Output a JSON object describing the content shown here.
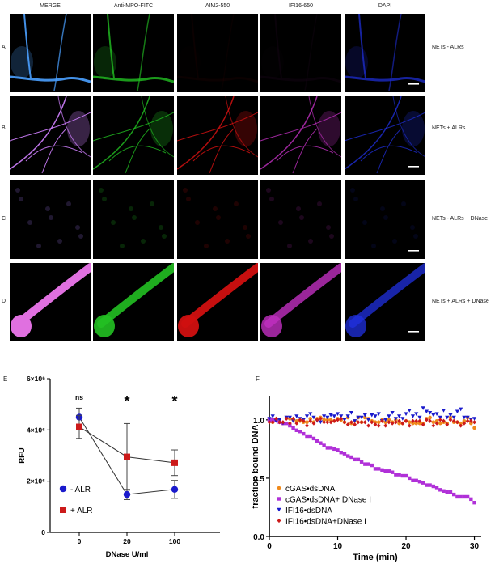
{
  "figure": {
    "columns": [
      "MERGE",
      "Anti-MPO-FITC",
      "AIM2-550",
      "IFI16-650",
      "DAPI"
    ],
    "rows": [
      {
        "letter": "A",
        "condition": "NETs - ALRs"
      },
      {
        "letter": "B",
        "condition": "NETs + ALRs"
      },
      {
        "letter": "C",
        "condition": "NETs - ALRs + DNase"
      },
      {
        "letter": "D",
        "condition": "NETs + ALRs + DNase"
      }
    ],
    "channel_colors": {
      "merge": "#3a7bd5",
      "mpo": "#22c022",
      "aim2": "#d01010",
      "ifi16": "#c030c0",
      "dapi": "#2030e0"
    }
  },
  "panelE": {
    "letter": "E",
    "chart_data": {
      "type": "line",
      "xlabel": "DNase U/ml",
      "ylabel": "RFU",
      "x_ticks": [
        "0",
        "20",
        "100"
      ],
      "y_ticks": [
        "0",
        "2×10⁶",
        "4×10⁶",
        "6×10⁶"
      ],
      "ylim": [
        0,
        6000000
      ],
      "significance": [
        "ns",
        "*",
        "*"
      ],
      "series": [
        {
          "name": "- ALR",
          "color": "#1a1acc",
          "marker": "circle",
          "values": [
            4500000,
            1480000,
            1680000
          ],
          "err": [
            350000,
            200000,
            350000
          ]
        },
        {
          "name": "+ ALR",
          "color": "#cc1a1a",
          "marker": "square",
          "values": [
            4120000,
            2950000,
            2720000
          ],
          "err": [
            450000,
            1300000,
            500000
          ]
        }
      ],
      "legend_position": "bottom-left"
    }
  },
  "panelF": {
    "letter": "F",
    "chart_data": {
      "type": "scatter",
      "xlabel": "Time (min)",
      "ylabel": "fraction bound  DNA",
      "x_ticks": [
        "0",
        "10",
        "20",
        "30"
      ],
      "y_ticks": [
        "0.0",
        "0.5",
        "1.0"
      ],
      "xlim": [
        0,
        31
      ],
      "ylim": [
        0,
        1.2
      ],
      "legend_position": "bottom-left",
      "series": [
        {
          "name": "cGAS•dsDNA",
          "color": "#f08a1c",
          "marker": "circle",
          "x": [
            0.0,
            0.5,
            1.0,
            1.5,
            2.0,
            2.5,
            3.0,
            3.5,
            4.0,
            4.5,
            5.0,
            5.5,
            6.0,
            6.5,
            7.0,
            7.5,
            8.0,
            8.5,
            9.0,
            9.5,
            10.0,
            10.5,
            11.0,
            11.5,
            12.0,
            12.5,
            13.0,
            13.5,
            14.0,
            14.5,
            15.0,
            15.5,
            16.0,
            16.5,
            17.0,
            17.5,
            18.0,
            18.5,
            19.0,
            19.5,
            20.0,
            20.5,
            21.0,
            21.5,
            22.0,
            22.5,
            23.0,
            23.5,
            24.0,
            24.5,
            25.0,
            25.5,
            26.0,
            26.5,
            27.0,
            27.5,
            28.0,
            28.5,
            29.0,
            29.5,
            30.0
          ],
          "y": [
            1.01,
            0.98,
            1.0,
            0.99,
            0.97,
            1.02,
            1.01,
            1.0,
            0.99,
            0.99,
            0.98,
            0.98,
            1.01,
            0.98,
            1.01,
            1.02,
            1.0,
            1.0,
            1.0,
            0.99,
            1.01,
            1.0,
            0.98,
            1.02,
            0.97,
            0.99,
            1.02,
            0.98,
            1.02,
            1.01,
            0.99,
            0.98,
            0.98,
            1.0,
            0.98,
            1.0,
            0.98,
            1.0,
            0.97,
            0.97,
            0.99,
            0.98,
            0.97,
            0.97,
            0.97,
            0.97,
            1.01,
            1.02,
            0.98,
            0.99,
            0.97,
            0.98,
            0.97,
            1.02,
            0.98,
            0.98,
            0.97,
            0.99,
            1.02,
            0.97,
            0.93
          ]
        },
        {
          "name": "cGAS•dsDNA+ DNase I",
          "color": "#b030d8",
          "marker": "square",
          "x": [
            0.0,
            0.5,
            1.0,
            1.5,
            2.0,
            2.5,
            3.0,
            3.5,
            4.0,
            4.5,
            5.0,
            5.5,
            6.0,
            6.5,
            7.0,
            7.5,
            8.0,
            8.5,
            9.0,
            9.5,
            10.0,
            10.5,
            11.0,
            11.5,
            12.0,
            12.5,
            13.0,
            13.5,
            14.0,
            14.5,
            15.0,
            15.5,
            16.0,
            16.5,
            17.0,
            17.5,
            18.0,
            18.5,
            19.0,
            19.5,
            20.0,
            20.5,
            21.0,
            21.5,
            22.0,
            22.5,
            23.0,
            23.5,
            24.0,
            24.5,
            25.0,
            25.5,
            26.0,
            26.5,
            27.0,
            27.5,
            28.0,
            28.5,
            29.0,
            29.5,
            30.0
          ],
          "y": [
            1.0,
            1.0,
            1.0,
            0.98,
            0.97,
            0.97,
            0.95,
            0.93,
            0.91,
            0.9,
            0.88,
            0.86,
            0.86,
            0.84,
            0.82,
            0.8,
            0.78,
            0.76,
            0.76,
            0.75,
            0.74,
            0.72,
            0.71,
            0.69,
            0.68,
            0.66,
            0.66,
            0.64,
            0.62,
            0.62,
            0.61,
            0.58,
            0.58,
            0.57,
            0.56,
            0.56,
            0.55,
            0.53,
            0.53,
            0.52,
            0.52,
            0.5,
            0.48,
            0.48,
            0.47,
            0.46,
            0.44,
            0.44,
            0.43,
            0.42,
            0.4,
            0.39,
            0.38,
            0.38,
            0.36,
            0.34,
            0.34,
            0.34,
            0.34,
            0.32,
            0.29
          ]
        },
        {
          "name": "IFI16•dsDNA",
          "color": "#1a1acc",
          "marker": "triangle-down",
          "x": [
            0.0,
            0.5,
            1.0,
            1.5,
            2.0,
            2.5,
            3.0,
            3.5,
            4.0,
            4.5,
            5.0,
            5.5,
            6.0,
            6.5,
            7.0,
            7.5,
            8.0,
            8.5,
            9.0,
            9.5,
            10.0,
            10.5,
            11.0,
            11.5,
            12.0,
            12.5,
            13.0,
            13.5,
            14.0,
            14.5,
            15.0,
            15.5,
            16.0,
            16.5,
            17.0,
            17.5,
            18.0,
            18.5,
            19.0,
            19.5,
            20.0,
            20.5,
            21.0,
            21.5,
            22.0,
            22.5,
            23.0,
            23.5,
            24.0,
            24.5,
            25.0,
            25.5,
            26.0,
            26.5,
            27.0,
            27.5,
            28.0,
            28.5,
            29.0,
            29.5,
            30.0
          ],
          "y": [
            1.01,
            1.03,
            0.99,
            1.0,
            0.97,
            1.02,
            1.02,
            0.99,
            1.03,
            1.01,
            1.0,
            1.03,
            1.05,
            1.02,
            0.99,
            0.98,
            1.03,
            1.02,
            1.04,
            1.03,
            1.05,
            1.03,
            1.0,
            1.03,
            1.06,
            0.99,
            1.02,
            1.02,
            1.04,
            1.0,
            1.04,
            1.03,
            1.05,
            0.99,
            1.0,
            1.03,
            1.06,
            1.01,
            1.03,
            1.01,
            1.05,
            1.08,
            1.03,
            1.05,
            1.02,
            1.1,
            1.07,
            1.06,
            1.04,
            1.05,
            1.02,
            1.08,
            1.02,
            1.04,
            1.02,
            1.07,
            1.09,
            1.02,
            1.02,
            1.0,
            1.01
          ]
        },
        {
          "name": "IFI16•dsDNA+DNase I",
          "color": "#cc1a1a",
          "marker": "diamond",
          "x": [
            0.0,
            0.5,
            1.0,
            1.5,
            2.0,
            2.5,
            3.0,
            3.5,
            4.0,
            4.5,
            5.0,
            5.5,
            6.0,
            6.5,
            7.0,
            7.5,
            8.0,
            8.5,
            9.0,
            9.5,
            10.0,
            10.5,
            11.0,
            11.5,
            12.0,
            12.5,
            13.0,
            13.5,
            14.0,
            14.5,
            15.0,
            15.5,
            16.0,
            16.5,
            17.0,
            17.5,
            18.0,
            18.5,
            19.0,
            19.5,
            20.0,
            20.5,
            21.0,
            21.5,
            22.0,
            22.5,
            23.0,
            23.5,
            24.0,
            24.5,
            25.0,
            25.5,
            26.0,
            26.5,
            27.0,
            27.5,
            28.0,
            28.5,
            29.0,
            29.5,
            30.0
          ],
          "y": [
            0.98,
            0.98,
            1.01,
            0.98,
            0.98,
            1.01,
            0.97,
            1.01,
            0.97,
            1.0,
            0.99,
            0.95,
            0.99,
            0.97,
            1.0,
            1.01,
            0.98,
            0.98,
            0.98,
            0.99,
            1.0,
            1.01,
            0.98,
            0.96,
            0.98,
            0.96,
            0.98,
            0.98,
            0.98,
            0.95,
            0.98,
            0.96,
            0.95,
            0.99,
            0.95,
            0.98,
            0.97,
            0.98,
            0.99,
            0.97,
            0.99,
            0.95,
            0.99,
            0.99,
            0.99,
            0.96,
            1.0,
            0.99,
            0.95,
            0.97,
            1.0,
            0.99,
            0.96,
            1.0,
            0.99,
            0.98,
            0.95,
            0.97,
            0.99,
            0.99,
            0.98
          ]
        }
      ]
    }
  }
}
